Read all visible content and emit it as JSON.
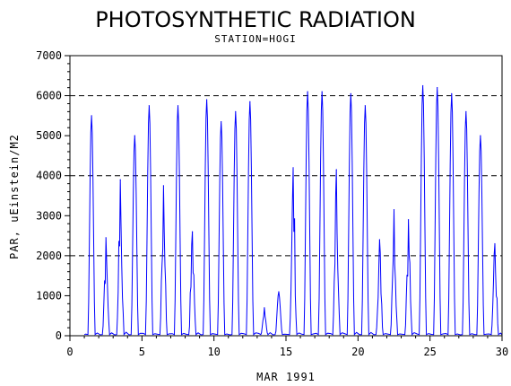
{
  "chart_data": {
    "type": "line",
    "title": "PHOTOSYNTHETIC RADIATION",
    "subtitle": "STATION=HOGI",
    "xlabel": "MAR 1991",
    "ylabel": "PAR, uEinstein/M2",
    "xlim": [
      0,
      30
    ],
    "ylim": [
      0,
      7000
    ],
    "xticks": [
      0,
      5,
      10,
      15,
      20,
      25,
      30
    ],
    "yticks": [
      0,
      1000,
      2000,
      3000,
      4000,
      5000,
      6000,
      7000
    ],
    "reference_lines": [
      2000,
      4000,
      6000
    ],
    "grid": false,
    "series_color": "#0000ff",
    "daily_peaks": [
      {
        "day": 1,
        "peak": 5500
      },
      {
        "day": 2,
        "peak": 2450
      },
      {
        "day": 3,
        "peak": 3900
      },
      {
        "day": 4,
        "peak": 5000
      },
      {
        "day": 5,
        "peak": 5750
      },
      {
        "day": 6,
        "peak": 3750
      },
      {
        "day": 7,
        "peak": 5750
      },
      {
        "day": 8,
        "peak": 2600
      },
      {
        "day": 9,
        "peak": 5900
      },
      {
        "day": 10,
        "peak": 5350
      },
      {
        "day": 11,
        "peak": 5600
      },
      {
        "day": 12,
        "peak": 5850
      },
      {
        "day": 13,
        "peak": 700
      },
      {
        "day": 14,
        "peak": 1100
      },
      {
        "day": 15,
        "peak": 4200
      },
      {
        "day": 16,
        "peak": 6100
      },
      {
        "day": 17,
        "peak": 6100
      },
      {
        "day": 18,
        "peak": 4150
      },
      {
        "day": 19,
        "peak": 6050
      },
      {
        "day": 20,
        "peak": 5750
      },
      {
        "day": 21,
        "peak": 2400
      },
      {
        "day": 22,
        "peak": 3150
      },
      {
        "day": 23,
        "peak": 2900
      },
      {
        "day": 24,
        "peak": 6250
      },
      {
        "day": 25,
        "peak": 6200
      },
      {
        "day": 26,
        "peak": 6050
      },
      {
        "day": 27,
        "peak": 5600
      },
      {
        "day": 28,
        "peak": 5000
      },
      {
        "day": 29,
        "peak": 2300
      }
    ],
    "colors": {
      "axis": "#000000",
      "line": "#0000ff",
      "reference": "#000000"
    }
  }
}
